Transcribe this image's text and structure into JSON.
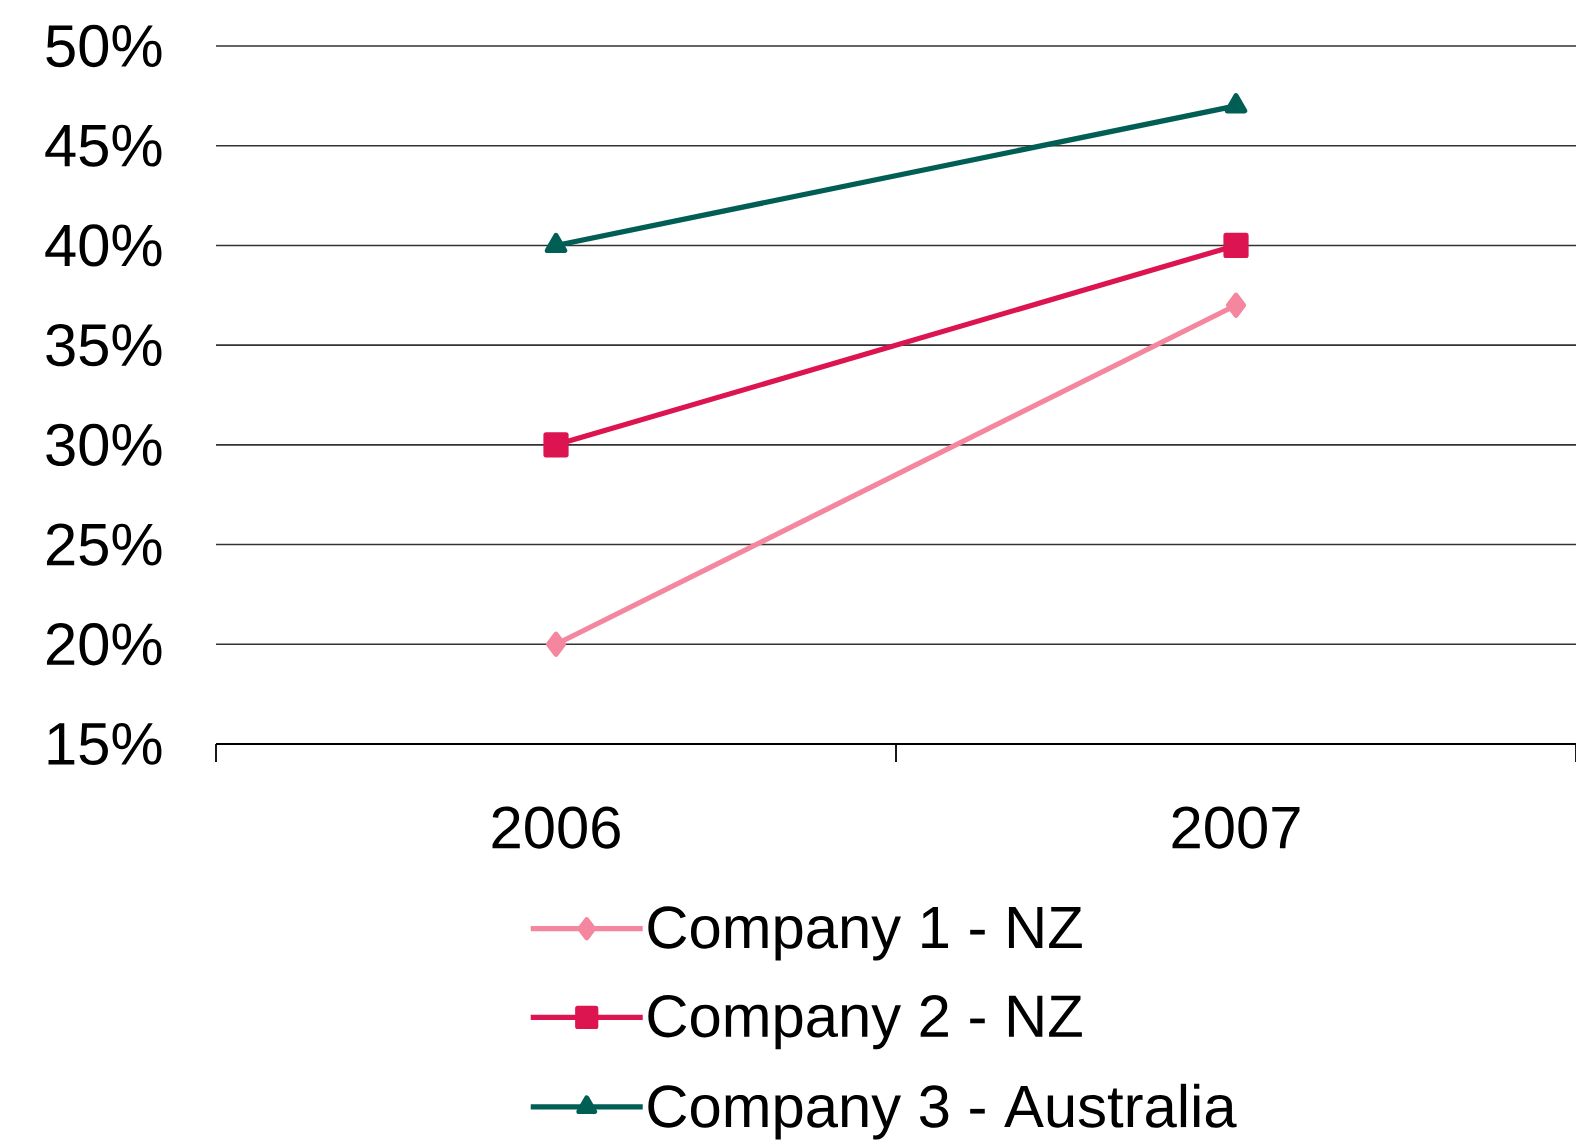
{
  "chart_data": {
    "type": "line",
    "categories": [
      "2006",
      "2007"
    ],
    "series": [
      {
        "name": "Company 1 - NZ",
        "color": "#f4879f",
        "values": [
          20,
          37
        ],
        "marker": "diamond"
      },
      {
        "name": "Company 2 - NZ",
        "color": "#dc1450",
        "values": [
          30,
          40
        ],
        "marker": "square"
      },
      {
        "name": "Company 3 - Australia",
        "color": "#005e55",
        "values": [
          40,
          47
        ],
        "marker": "triangle"
      }
    ],
    "ylim": [
      15,
      50
    ],
    "yticks": [
      {
        "value": 15,
        "label": "15%"
      },
      {
        "value": 20,
        "label": "20%"
      },
      {
        "value": 25,
        "label": "25%"
      },
      {
        "value": 30,
        "label": "30%"
      },
      {
        "value": 35,
        "label": "35%"
      },
      {
        "value": 40,
        "label": "40%"
      },
      {
        "value": 45,
        "label": "45%"
      },
      {
        "value": 50,
        "label": "50%"
      }
    ],
    "grid": "y",
    "legend": "bottom"
  }
}
